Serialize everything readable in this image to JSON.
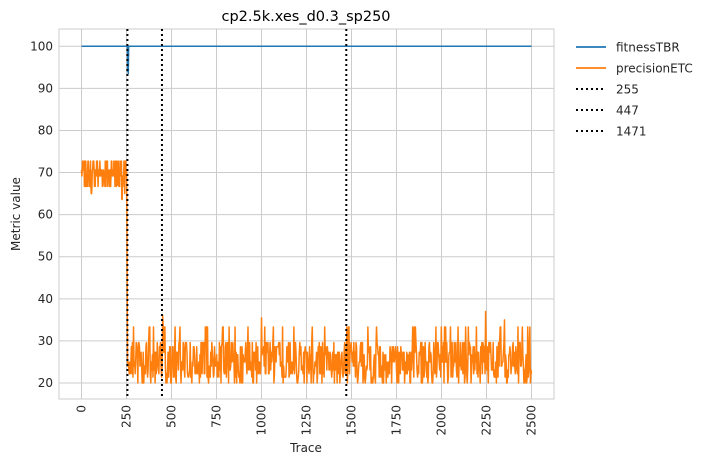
{
  "chart_data": {
    "type": "line",
    "title": "cp2.5k.xes_d0.3_sp250",
    "xlabel": "Trace",
    "ylabel": "Metric value",
    "xlim": [
      -125,
      2625
    ],
    "ylim": [
      16.2,
      104.1
    ],
    "xticks": [
      0,
      250,
      500,
      750,
      1000,
      1250,
      1500,
      1750,
      2000,
      2250,
      2500
    ],
    "yticks": [
      20,
      30,
      40,
      50,
      60,
      70,
      80,
      90,
      100
    ],
    "grid": true,
    "legend_position": "outside-top-right",
    "series": [
      {
        "name": "fitnessTBR",
        "color": "#1f77b4",
        "style": "solid",
        "points": [
          [
            0,
            100
          ],
          [
            250,
            100
          ],
          [
            255,
            100
          ],
          [
            256,
            94
          ],
          [
            258,
            99
          ],
          [
            260,
            93.5
          ],
          [
            262,
            100
          ],
          [
            2500,
            100
          ]
        ]
      },
      {
        "name": "precisionETC",
        "color": "#ff7f0e",
        "style": "solid",
        "description_points": "noisy band 66.7-72.7 for trace 0-250, sharp drop near 255, then oscillation 20-33 (spikes to ~37) for trace 255-2500",
        "regimes": [
          {
            "from": 0,
            "to": 250,
            "values": [
              66.7,
              72.7
            ],
            "dips": [
              [
                55,
                65
              ],
              [
                120,
                67
              ],
              [
                200,
                67
              ],
              [
                225,
                63.6
              ],
              [
                240,
                65
              ]
            ]
          },
          {
            "from": 256,
            "to": 2500,
            "values": [
              20,
              29.6
            ],
            "spikes": [
              [
                290,
                33.3
              ],
              [
                400,
                33.3
              ],
              [
                450,
                36
              ],
              [
                520,
                33.3
              ],
              [
                700,
                33.3
              ],
              [
                820,
                33.3
              ],
              [
                1000,
                35.5
              ],
              [
                1180,
                33.3
              ],
              [
                1350,
                33.3
              ],
              [
                1640,
                33.3
              ],
              [
                1850,
                33.3
              ],
              [
                2000,
                33.3
              ],
              [
                2150,
                33.3
              ],
              [
                2245,
                37
              ],
              [
                2350,
                35
              ],
              [
                2450,
                33.3
              ]
            ]
          }
        ]
      },
      {
        "name": "255",
        "color": "#000000",
        "style": "dotted",
        "vline": 255
      },
      {
        "name": "447",
        "color": "#000000",
        "style": "dotted",
        "vline": 447
      },
      {
        "name": "1471",
        "color": "#000000",
        "style": "dotted",
        "vline": 1471
      }
    ]
  }
}
